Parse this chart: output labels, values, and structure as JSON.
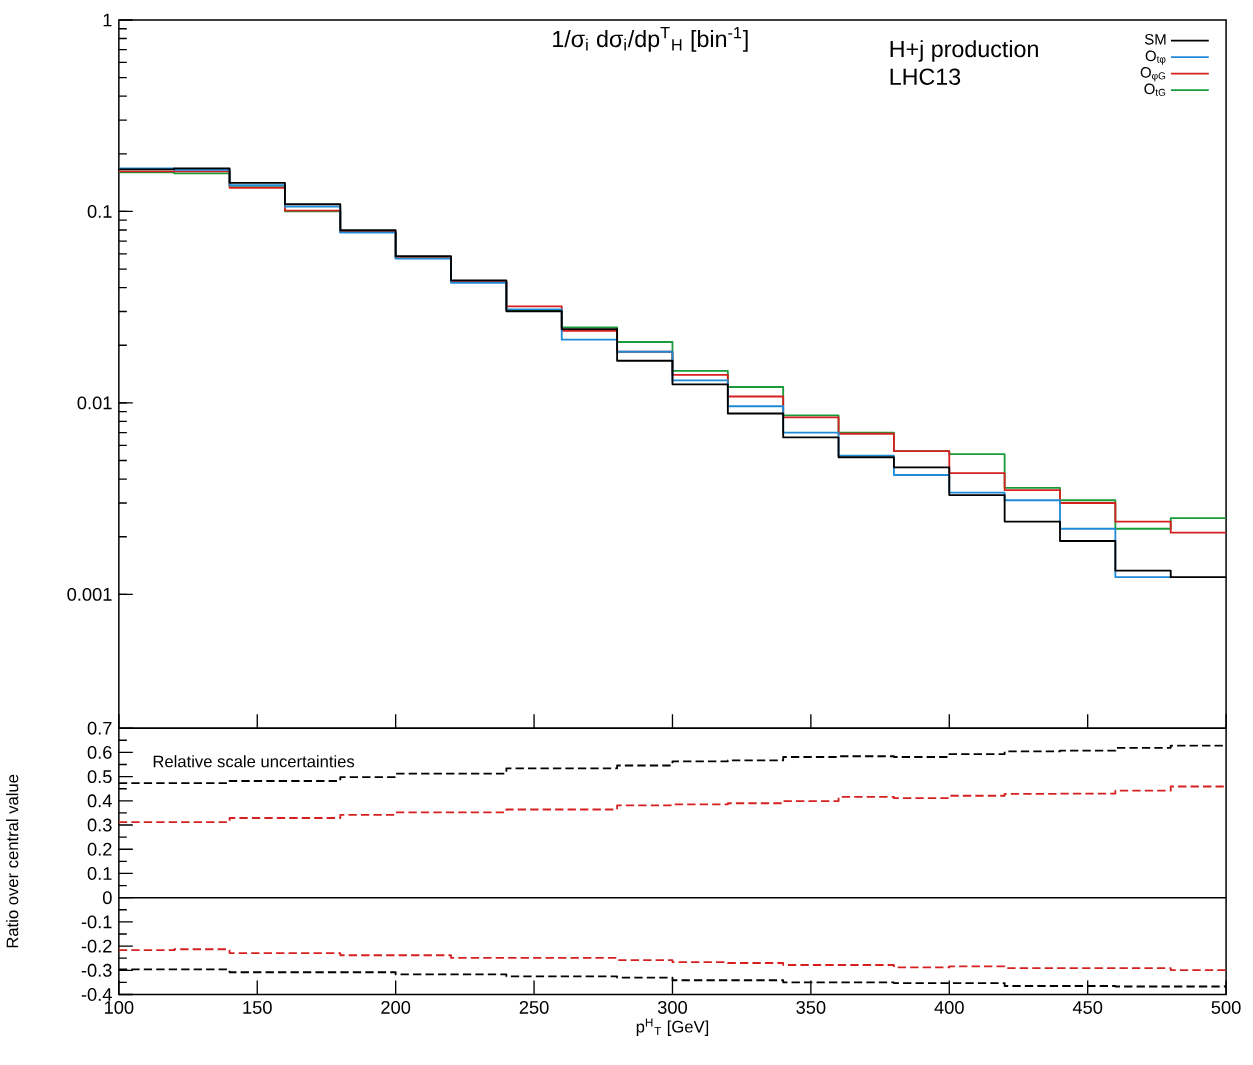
{
  "chart_data": [
    {
      "type": "step",
      "title": "1/σ$_{i}$ dσ$_{i}$/dp$^{T}$$_{H}$ [bin$^{-1}$]",
      "annotations": [
        "H+j production",
        "LHC13"
      ],
      "x": [
        100,
        120,
        140,
        160,
        180,
        200,
        220,
        240,
        260,
        280,
        300,
        320,
        340,
        360,
        380,
        400,
        420,
        440,
        460,
        480,
        500
      ],
      "xlim": [
        100,
        500
      ],
      "xticks": [
        100,
        150,
        200,
        250,
        300,
        350,
        400,
        450,
        500
      ],
      "ylim": [
        0.0002,
        1
      ],
      "yticks": [
        0.001,
        0.01,
        0.1,
        1
      ],
      "log": "y",
      "tick_labels": "y",
      "legend": "top right",
      "series": [
        {
          "name": "SM",
          "color": "#000000",
          "values": [
            0.166,
            0.168,
            0.141,
            0.109,
            0.0798,
            0.0584,
            0.0436,
            0.0301,
            0.0243,
            0.0166,
            0.0125,
            0.0088,
            0.0066,
            0.0052,
            0.0046,
            0.0033,
            0.0024,
            0.0019,
            0.00133,
            0.00123,
            0.00123
          ]
        },
        {
          "name": "O$_{tφ}$",
          "color": "#1f8ad6",
          "x": [
            100,
            120,
            140,
            160,
            180,
            200,
            220,
            240,
            260,
            280,
            300,
            320,
            340,
            360,
            380,
            400,
            420,
            440,
            460,
            480
          ],
          "values": [
            0.168,
            0.165,
            0.137,
            0.106,
            0.0775,
            0.0567,
            0.0424,
            0.0308,
            0.0214,
            0.0185,
            0.0131,
            0.0096,
            0.007,
            0.0053,
            0.0042,
            0.0034,
            0.0031,
            0.0022,
            0.00123,
            0.00123
          ]
        },
        {
          "name": "O$_{φG}$",
          "color": "#d62020",
          "values": [
            0.162,
            0.162,
            0.133,
            0.101,
            0.078,
            0.057,
            0.0428,
            0.0319,
            0.0238,
            0.0185,
            0.014,
            0.0108,
            0.0084,
            0.0069,
            0.0056,
            0.0043,
            0.0035,
            0.003,
            0.0024,
            0.0021,
            0.0021
          ]
        },
        {
          "name": "O$_{tG}$",
          "color": "#1a9a3a",
          "values": [
            0.16,
            0.158,
            0.136,
            0.1,
            0.078,
            0.057,
            0.0428,
            0.0305,
            0.0248,
            0.0208,
            0.0147,
            0.0121,
            0.0086,
            0.007,
            0.0056,
            0.0054,
            0.0036,
            0.0031,
            0.0022,
            0.0025,
            0.0025
          ]
        }
      ]
    },
    {
      "type": "step",
      "xlabel": "p$^{H}$$_{T}$ [GeV]",
      "ylabel": "Ratio over central value",
      "annotations": [
        "Relative scale uncertainties"
      ],
      "x": [
        100,
        120,
        140,
        160,
        180,
        200,
        220,
        240,
        260,
        280,
        300,
        320,
        340,
        360,
        380,
        400,
        420,
        440,
        460,
        480,
        500
      ],
      "xlim": [
        100,
        500
      ],
      "xticks": [
        100,
        150,
        200,
        250,
        300,
        350,
        400,
        450,
        500
      ],
      "ylim": [
        -0.4,
        0.7
      ],
      "yticks": [
        {
          "value": -0.4,
          "label": "-0.4"
        },
        -0.3,
        -0.2,
        -0.1,
        0,
        0.1,
        0.2,
        0.3,
        0.4,
        0.5,
        0.6,
        0.7
      ],
      "line_style": "dashed",
      "ref_lines": [
        {
          "axis": "y",
          "value": 0,
          "color": "#000000"
        }
      ],
      "series": [
        {
          "color": "#d62020",
          "values": [
            0.312,
            0.312,
            0.329,
            0.329,
            0.342,
            0.352,
            0.352,
            0.364,
            0.364,
            0.381,
            0.385,
            0.39,
            0.399,
            0.416,
            0.411,
            0.421,
            0.429,
            0.43,
            0.442,
            0.459,
            0.459
          ]
        },
        {
          "color": "#d62020",
          "values": [
            -0.217,
            -0.213,
            -0.229,
            -0.229,
            -0.238,
            -0.238,
            -0.249,
            -0.249,
            -0.249,
            -0.258,
            -0.266,
            -0.27,
            -0.278,
            -0.278,
            -0.288,
            -0.284,
            -0.291,
            -0.291,
            -0.291,
            -0.299,
            -0.299
          ]
        },
        {
          "color": "#000000",
          "values": [
            0.473,
            0.473,
            0.482,
            0.482,
            0.498,
            0.512,
            0.512,
            0.534,
            0.534,
            0.546,
            0.563,
            0.567,
            0.581,
            0.584,
            0.581,
            0.593,
            0.604,
            0.607,
            0.619,
            0.628,
            0.628
          ]
        },
        {
          "color": "#000000",
          "values": [
            -0.296,
            -0.296,
            -0.308,
            -0.308,
            -0.308,
            -0.317,
            -0.317,
            -0.325,
            -0.325,
            -0.33,
            -0.341,
            -0.341,
            -0.35,
            -0.35,
            -0.353,
            -0.353,
            -0.365,
            -0.365,
            -0.367,
            -0.367,
            -0.367
          ]
        }
      ]
    }
  ]
}
